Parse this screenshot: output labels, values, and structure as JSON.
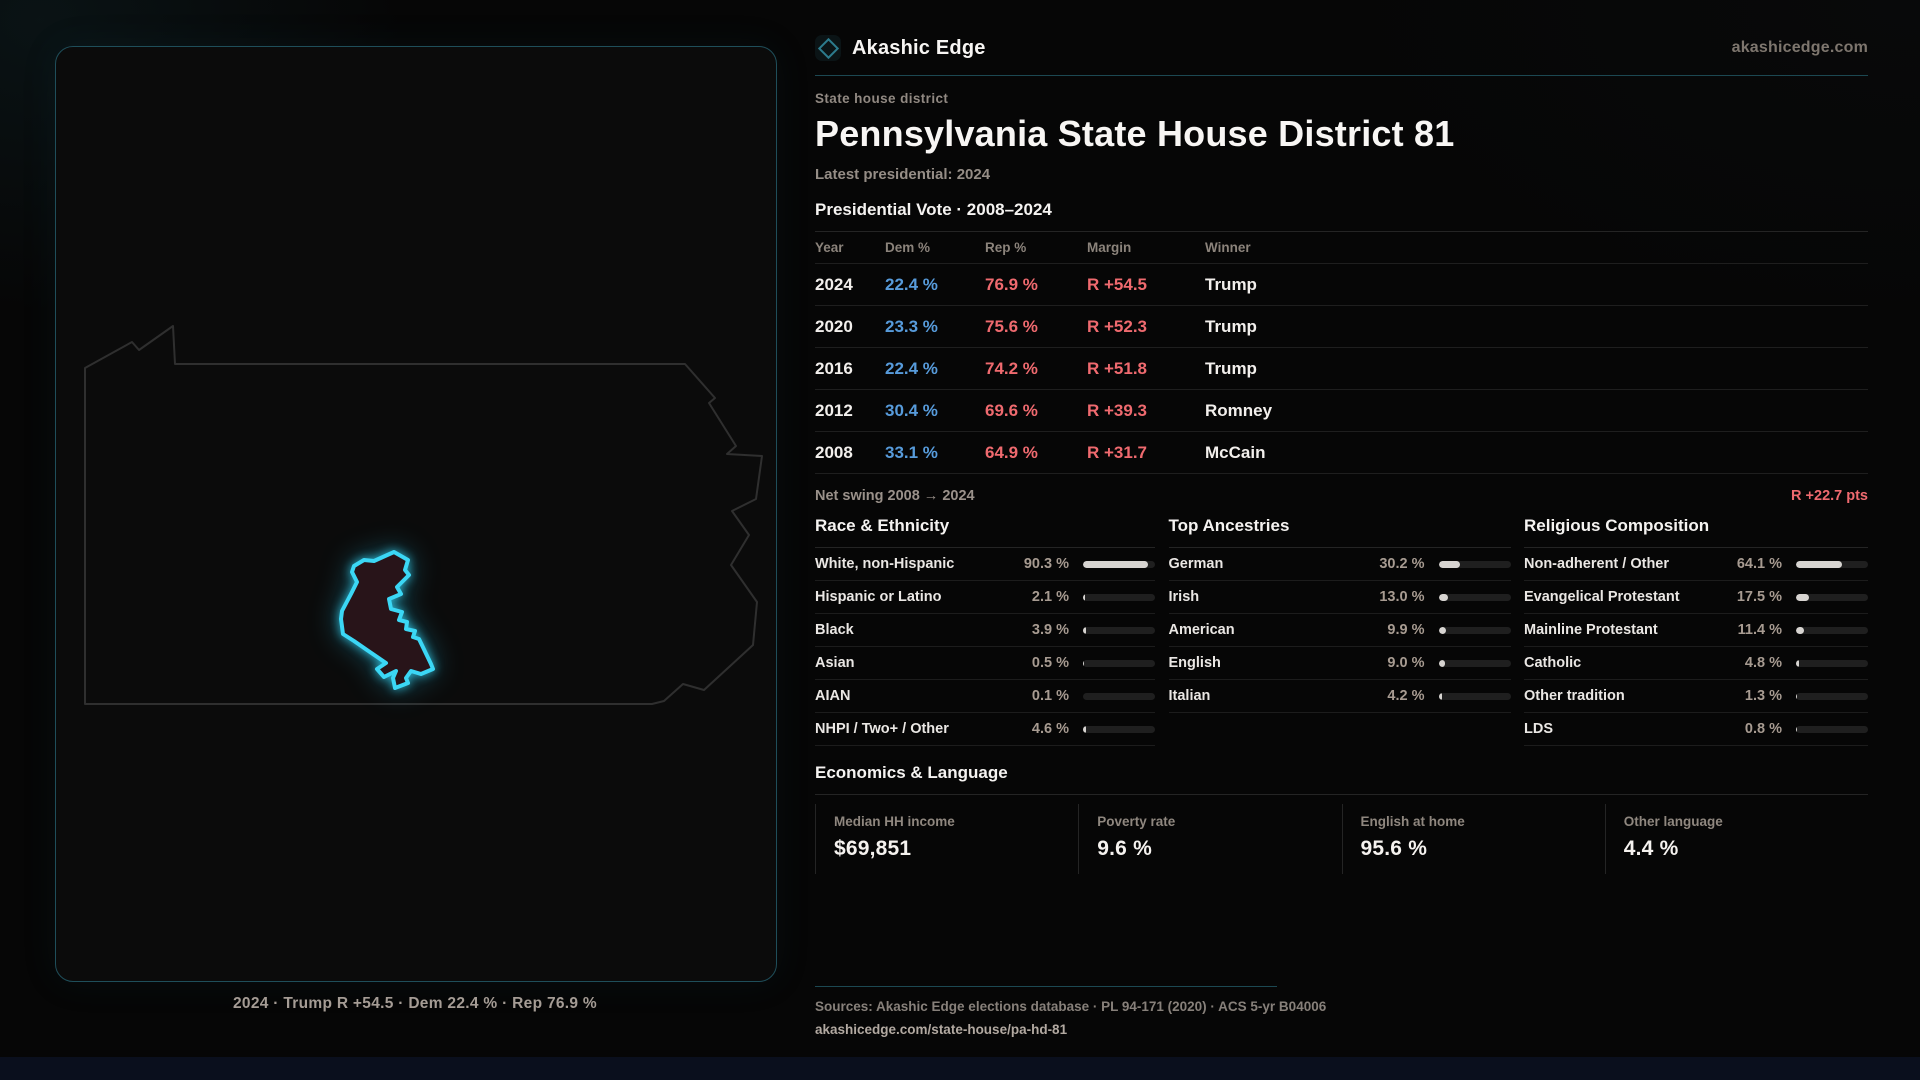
{
  "header": {
    "brand": "Akashic Edge",
    "domain": "akashicedge.com"
  },
  "page": {
    "eyebrow": "State house district",
    "title": "Pennsylvania State House District 81",
    "latest_line": "Latest presidential: 2024"
  },
  "vote_table": {
    "heading": "Presidential Vote · 2008–2024",
    "columns": [
      "Year",
      "Dem %",
      "Rep %",
      "Margin",
      "Winner"
    ],
    "rows": [
      {
        "year": "2024",
        "dem": "22.4 %",
        "rep": "76.9 %",
        "margin": "R +54.5",
        "winner": "Trump"
      },
      {
        "year": "2020",
        "dem": "23.3 %",
        "rep": "75.6 %",
        "margin": "R +52.3",
        "winner": "Trump"
      },
      {
        "year": "2016",
        "dem": "22.4 %",
        "rep": "74.2 %",
        "margin": "R +51.8",
        "winner": "Trump"
      },
      {
        "year": "2012",
        "dem": "30.4 %",
        "rep": "69.6 %",
        "margin": "R +39.3",
        "winner": "Romney"
      },
      {
        "year": "2008",
        "dem": "33.1 %",
        "rep": "64.9 %",
        "margin": "R +31.7",
        "winner": "McCain"
      }
    ],
    "net_swing_label": "Net swing 2008 → 2024",
    "net_swing_value": "R +22.7 pts"
  },
  "demographics": {
    "groups": [
      {
        "title": "Race & Ethnicity",
        "rows": [
          {
            "label": "White, non-Hispanic",
            "display": "90.3 %",
            "pct": 90.3
          },
          {
            "label": "Hispanic or Latino",
            "display": "2.1 %",
            "pct": 2.1
          },
          {
            "label": "Black",
            "display": "3.9 %",
            "pct": 3.9
          },
          {
            "label": "Asian",
            "display": "0.5 %",
            "pct": 0.5
          },
          {
            "label": "AIAN",
            "display": "0.1 %",
            "pct": 0.1
          },
          {
            "label": "NHPI / Two+ / Other",
            "display": "4.6 %",
            "pct": 4.6
          }
        ]
      },
      {
        "title": "Top Ancestries",
        "rows": [
          {
            "label": "German",
            "display": "30.2 %",
            "pct": 30.2
          },
          {
            "label": "Irish",
            "display": "13.0 %",
            "pct": 13.0
          },
          {
            "label": "American",
            "display": "9.9 %",
            "pct": 9.9
          },
          {
            "label": "English",
            "display": "9.0 %",
            "pct": 9.0
          },
          {
            "label": "Italian",
            "display": "4.2 %",
            "pct": 4.2
          }
        ]
      },
      {
        "title": "Religious Composition",
        "rows": [
          {
            "label": "Non-adherent / Other",
            "display": "64.1 %",
            "pct": 64.1
          },
          {
            "label": "Evangelical Protestant",
            "display": "17.5 %",
            "pct": 17.5
          },
          {
            "label": "Mainline Protestant",
            "display": "11.4 %",
            "pct": 11.4
          },
          {
            "label": "Catholic",
            "display": "4.8 %",
            "pct": 4.8
          },
          {
            "label": "Other tradition",
            "display": "1.3 %",
            "pct": 1.3
          },
          {
            "label": "LDS",
            "display": "0.8 %",
            "pct": 0.8
          }
        ]
      }
    ]
  },
  "economics": {
    "heading": "Economics & Language",
    "cards": [
      {
        "label": "Median HH income",
        "value": "$69,851"
      },
      {
        "label": "Poverty rate",
        "value": "9.6 %"
      },
      {
        "label": "English at home",
        "value": "95.6 %"
      },
      {
        "label": "Other language",
        "value": "4.4 %"
      }
    ]
  },
  "map": {
    "caption": "2024 · Trump R +54.5 · Dem 22.4 % · Rep 76.9 %"
  },
  "footer": {
    "sources": "Sources: Akashic Edge elections database · PL 94-171 (2020) · ACS 5-yr B04006",
    "permalink": "akashicedge.com/state-house/pa-hd-81"
  },
  "colors": {
    "accent_cyan": "#3bd7f5",
    "dem_blue": "#579bdb",
    "rep_red": "#ef6a6f",
    "panel_border_teal": "#1f4e5a",
    "rule_teal": "#1c4852",
    "bar_fill": "#d7d4d1"
  }
}
